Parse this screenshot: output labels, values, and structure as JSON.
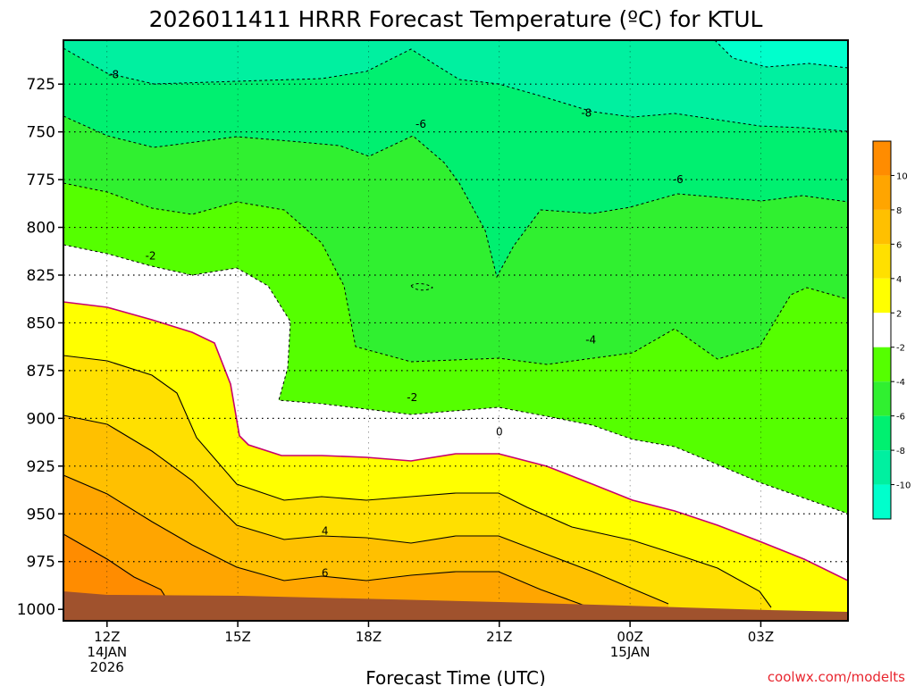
{
  "title": "2026011411 HRRR Forecast Temperature (ºC) for KTUL",
  "credit": "coolwx.com/modelts",
  "chart_data": {
    "type": "contour",
    "title": "2026011411 HRRR Forecast Temperature (ºC) for KTUL",
    "xlabel": "Forecast Time (UTC)",
    "ylabel": "",
    "x_ticks": [
      {
        "hour": 12,
        "label": "12Z",
        "sub": [
          "14JAN",
          "2026"
        ]
      },
      {
        "hour": 15,
        "label": "15Z",
        "sub": []
      },
      {
        "hour": 18,
        "label": "18Z",
        "sub": []
      },
      {
        "hour": 21,
        "label": "21Z",
        "sub": []
      },
      {
        "hour": 24,
        "label": "00Z",
        "sub": [
          "15JAN"
        ]
      },
      {
        "hour": 27,
        "label": "03Z",
        "sub": []
      }
    ],
    "xlim_hours": [
      11,
      29
    ],
    "y_ticks": [
      725,
      750,
      775,
      800,
      825,
      850,
      875,
      900,
      925,
      950,
      975,
      1000
    ],
    "ylim_hpa": [
      702,
      1006
    ],
    "colorbar": {
      "labels": [
        "10",
        "8",
        "6",
        "4",
        "2",
        "-2",
        "-4",
        "-6",
        "-8",
        "-10"
      ],
      "colors": [
        "#ff8c00",
        "#ffa500",
        "#ffc000",
        "#ffe000",
        "#ffff00",
        "#ffffff",
        "#55ff00",
        "#30f030",
        "#00f070",
        "#00f0a0",
        "#00ffcc"
      ]
    },
    "contour_labels": [
      {
        "text": "-8",
        "hour": 12.15,
        "hpa": 720
      },
      {
        "text": "-8",
        "hour": 23.0,
        "hpa": 740
      },
      {
        "text": "-6",
        "hour": 19.2,
        "hpa": 746
      },
      {
        "text": "-6",
        "hour": 25.1,
        "hpa": 775
      },
      {
        "text": "-2",
        "hour": 13.0,
        "hpa": 815
      },
      {
        "text": "-4",
        "hour": 23.1,
        "hpa": 859
      },
      {
        "text": "-2",
        "hour": 19.0,
        "hpa": 889
      },
      {
        "text": "0",
        "hour": 21.0,
        "hpa": 907
      },
      {
        "text": "4",
        "hour": 17.0,
        "hpa": 959
      },
      {
        "text": "6",
        "hour": 17.0,
        "hpa": 981
      }
    ],
    "surface_hpa": 1000
  }
}
